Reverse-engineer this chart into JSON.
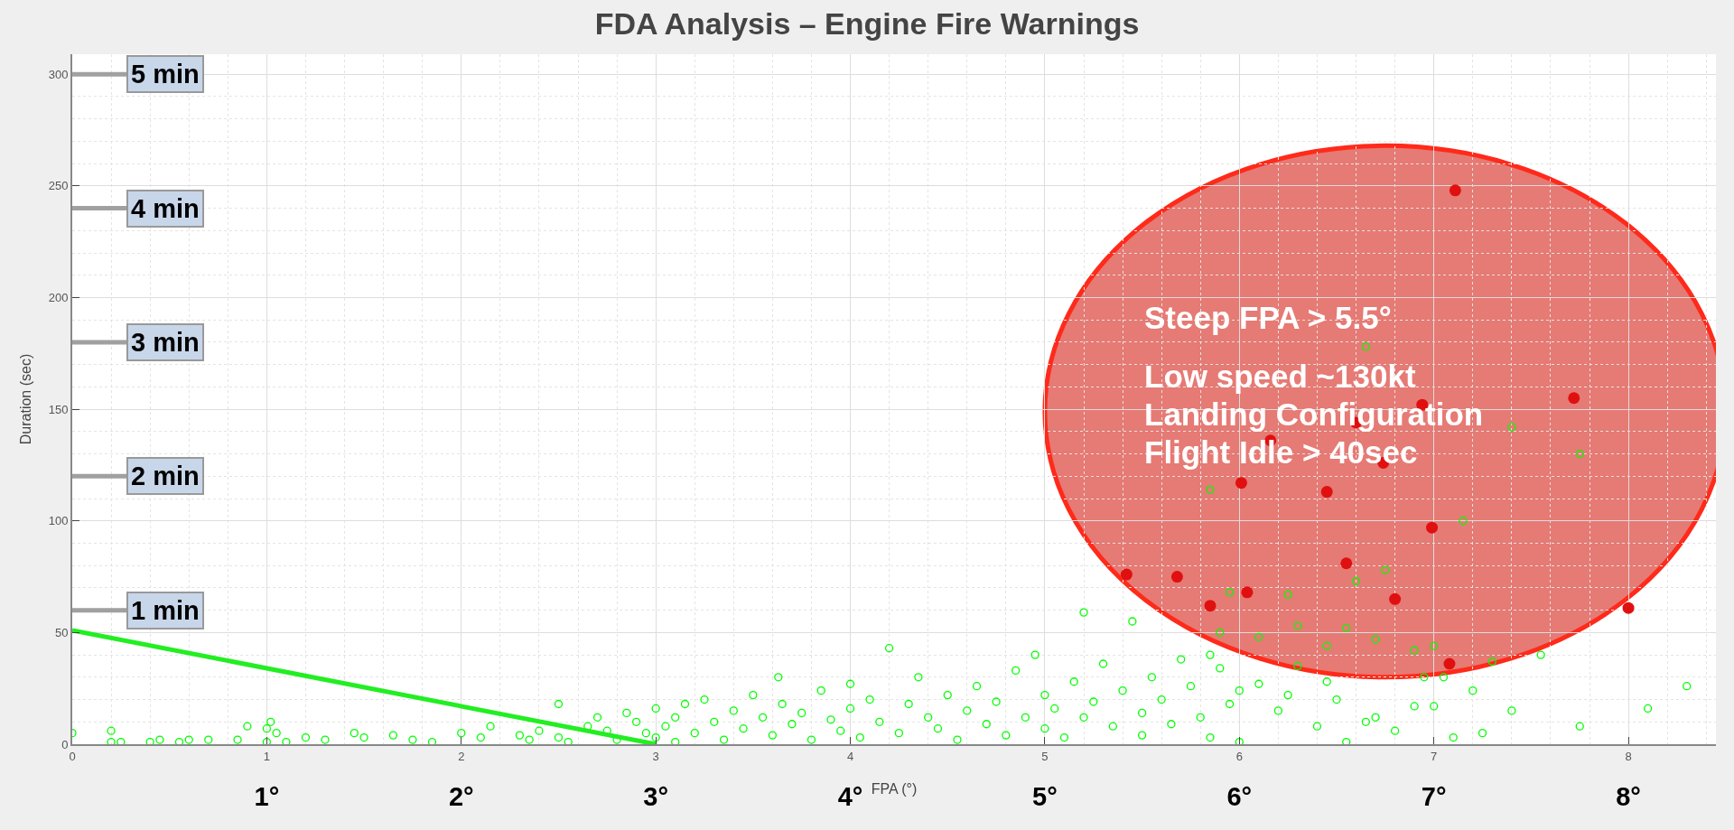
{
  "chart_data": {
    "type": "scatter",
    "title": "FDA Analysis – Engine Fire Warnings",
    "xlabel": "FPA (°)",
    "ylabel": "Duration (sec)",
    "xlim": [
      0,
      8.45
    ],
    "ylim": [
      0,
      309
    ],
    "xticks": [
      0,
      1,
      2,
      3,
      4,
      5,
      6,
      7,
      8
    ],
    "yticks": [
      0,
      50,
      100,
      150,
      200,
      250,
      300
    ],
    "grid": true,
    "marker": "circle",
    "series": [
      {
        "color": "#00ff00",
        "x": [
          0,
          0.2,
          0.2,
          0.25,
          0.4,
          0.45,
          0.55,
          0.6,
          0.7,
          0.85,
          0.9,
          1.05,
          1.1,
          1.0,
          1.0,
          1.02,
          1.2,
          1.3,
          1.45,
          1.5,
          1.65,
          1.75,
          1.85,
          2.0,
          2.1,
          2.15,
          2.3,
          2.35,
          2.4,
          2.5,
          2.55,
          2.5,
          2.65,
          2.7,
          2.75,
          2.8,
          2.85,
          2.9,
          2.95,
          3.0,
          3.0,
          3.05,
          3.1,
          3.1,
          3.15,
          3.2,
          3.25,
          3.3,
          3.35,
          3.4,
          3.63,
          3.45,
          3.5,
          3.55,
          3.6,
          3.65,
          3.7,
          3.75,
          3.8,
          3.85,
          3.9,
          3.95,
          4.0,
          4.0,
          4.05,
          4.1,
          4.15,
          4.2,
          4.25,
          4.3,
          4.35,
          4.4,
          4.45,
          4.5,
          4.55,
          4.6,
          4.65,
          4.7,
          4.75,
          4.8,
          4.85,
          4.9,
          4.95,
          5.0,
          5.0,
          5.05,
          5.1,
          5.15,
          5.2,
          5.2,
          5.25,
          5.3,
          5.35,
          5.4,
          5.45,
          5.5,
          5.5,
          5.55,
          5.6,
          5.65,
          5.7,
          5.75,
          5.8,
          5.85,
          5.9,
          5.95,
          6.0,
          6.0,
          5.85,
          6.25,
          6.65,
          7.4,
          7.75,
          7.15,
          5.9,
          6.1,
          6.3,
          6.45,
          6.55,
          6.7,
          6.9,
          7.0,
          7.3,
          6.95,
          6.6,
          6.75,
          5.95,
          6.1,
          6.2,
          6.3,
          6.4,
          6.5,
          6.55,
          6.7,
          6.8,
          6.9,
          7.0,
          7.1,
          7.2,
          7.25,
          7.4,
          7.55,
          7.75,
          8.1,
          8.3,
          6.45,
          6.25,
          5.85,
          6.65,
          7.05
        ],
        "values": [
          5,
          6,
          1,
          1,
          1,
          2,
          1,
          2,
          2,
          2,
          8,
          5,
          1,
          1,
          7,
          10,
          3,
          2,
          5,
          3,
          4,
          2,
          1,
          5,
          3,
          8,
          4,
          2,
          6,
          3,
          1,
          18,
          8,
          12,
          6,
          2,
          14,
          10,
          5,
          3,
          16,
          8,
          12,
          1,
          18,
          5,
          20,
          10,
          2,
          15,
          30,
          7,
          22,
          12,
          4,
          18,
          9,
          14,
          2,
          24,
          11,
          6,
          27,
          16,
          3,
          20,
          10,
          43,
          5,
          18,
          30,
          12,
          7,
          22,
          2,
          15,
          26,
          9,
          19,
          4,
          33,
          12,
          40,
          22,
          7,
          16,
          3,
          28,
          59,
          12,
          19,
          36,
          8,
          24,
          55,
          14,
          4,
          30,
          20,
          9,
          38,
          26,
          12,
          3,
          34,
          18,
          1,
          24,
          114,
          67,
          178,
          142,
          130,
          100,
          50,
          48,
          53,
          44,
          52,
          47,
          42,
          44,
          37,
          30,
          73,
          78,
          68,
          27,
          15,
          35,
          8,
          20,
          1,
          12,
          6,
          17,
          17,
          3,
          24,
          5,
          15,
          40,
          8,
          16,
          26,
          28,
          22,
          40,
          10,
          30
        ]
      },
      {
        "color": "#e01010",
        "x": [
          7.11,
          7.72,
          6.94,
          6.16,
          6.6,
          6.74,
          6.01,
          6.45,
          6.99,
          6.55,
          5.42,
          5.68,
          5.85,
          6.04,
          6.8,
          8.0,
          7.08
        ],
        "values": [
          248,
          155,
          152,
          136,
          144,
          126,
          117,
          113,
          97,
          81,
          76,
          75,
          62,
          68,
          65,
          61,
          36
        ]
      },
      {
        "type": "line",
        "marker": "none",
        "color": "#22ee22",
        "x": [
          0,
          3
        ],
        "values": [
          51,
          0
        ]
      }
    ],
    "x2lim": [
      0,
      8.45
    ],
    "x2ticks": [
      {
        "value": 1,
        "label": "1°"
      },
      {
        "value": 2,
        "label": "2°"
      },
      {
        "value": 3,
        "label": "3°"
      },
      {
        "value": 4,
        "label": "4°"
      },
      {
        "value": 5,
        "label": "5°"
      },
      {
        "value": 6,
        "label": "6°"
      },
      {
        "value": 7,
        "label": "7°"
      },
      {
        "value": 8,
        "label": "8°"
      }
    ],
    "ref_lines": [
      {
        "axis": "y",
        "value": 60,
        "label": "1 min"
      },
      {
        "axis": "y",
        "value": 120,
        "label": "2 min"
      },
      {
        "axis": "y",
        "value": 180,
        "label": "3 min"
      },
      {
        "axis": "y",
        "value": 240,
        "label": "4 min"
      },
      {
        "axis": "y",
        "value": 300,
        "label": "5 min"
      }
    ],
    "annotations": [
      "Steep FPA > 5.5°\nLow speed ~130kt\nLanding Configuration\nFlight Idle > 40sec"
    ]
  }
}
